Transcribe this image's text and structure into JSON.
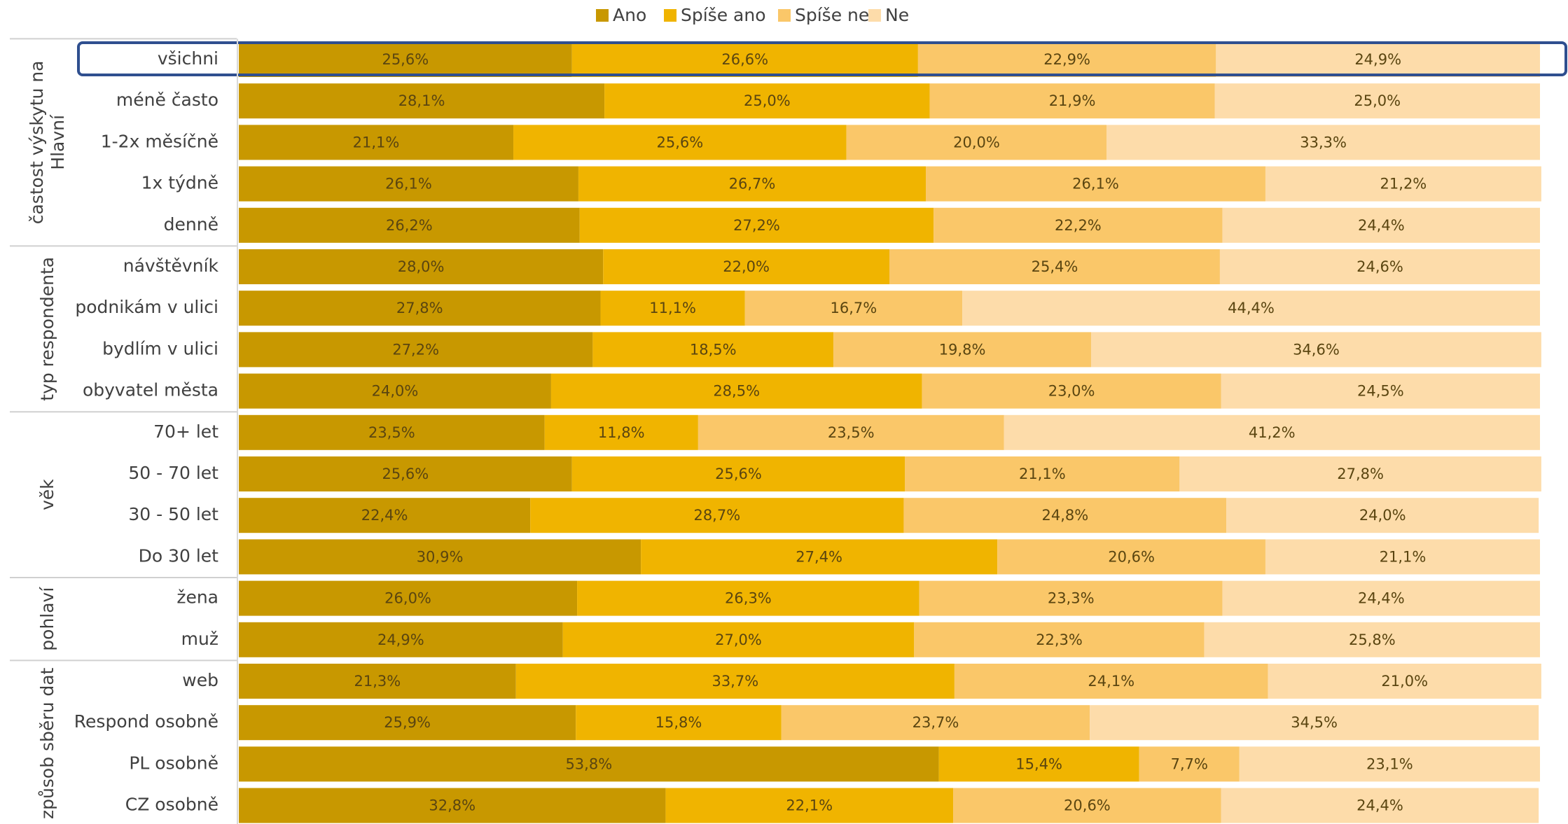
{
  "chart_data": {
    "type": "stacked-bar-horizontal",
    "xlim": [
      0,
      100
    ],
    "groups": [
      {
        "label": [
          "častost výskytu na",
          "Hlavní"
        ],
        "categories": [
          "všichni",
          "méně často",
          "1-2x měsíčně",
          "1x týdně",
          "denně"
        ]
      },
      {
        "label": [
          "typ respondenta"
        ],
        "categories": [
          "návštěvník",
          "podnikám v ulici",
          "bydlím v ulici",
          "obyvatel města"
        ]
      },
      {
        "label": [
          "věk"
        ],
        "categories": [
          "70+ let",
          "50 - 70 let",
          "30 - 50 let",
          "Do 30 let"
        ]
      },
      {
        "label": [
          "pohlaví"
        ],
        "categories": [
          "žena",
          "muž"
        ]
      },
      {
        "label": [
          "způsob sběru dat"
        ],
        "categories": [
          "web",
          "Respond osobně",
          "PL osobně",
          "CZ osobně"
        ]
      }
    ],
    "series": [
      {
        "name": "Ano",
        "color": "#c89800",
        "values": [
          25.6,
          28.1,
          21.1,
          26.1,
          26.2,
          28.0,
          27.8,
          27.2,
          24.0,
          23.5,
          25.6,
          22.4,
          30.9,
          26.0,
          24.9,
          21.3,
          25.9,
          53.8,
          32.8
        ],
        "value_labels": [
          "25,6%",
          "28,1%",
          "21,1%",
          "26,1%",
          "26,2%",
          "28,0%",
          "27,8%",
          "27,2%",
          "24,0%",
          "23,5%",
          "25,6%",
          "22,4%",
          "30,9%",
          "26,0%",
          "24,9%",
          "21,3%",
          "25,9%",
          "53,8%",
          "32,8%"
        ]
      },
      {
        "name": "Spíše ano",
        "color": "#f0b400",
        "values": [
          26.6,
          25.0,
          25.6,
          26.7,
          27.2,
          22.0,
          11.1,
          18.5,
          28.5,
          11.8,
          25.6,
          28.7,
          27.4,
          26.3,
          27.0,
          33.7,
          15.8,
          15.4,
          22.1
        ],
        "value_labels": [
          "26,6%",
          "25,0%",
          "25,6%",
          "26,7%",
          "27,2%",
          "22,0%",
          "11,1%",
          "18,5%",
          "28,5%",
          "11,8%",
          "25,6%",
          "28,7%",
          "27,4%",
          "26,3%",
          "27,0%",
          "33,7%",
          "15,8%",
          "15,4%",
          "22,1%"
        ]
      },
      {
        "name": "Spíše ne",
        "color": "#fac769",
        "values": [
          22.9,
          21.9,
          20.0,
          26.1,
          22.2,
          25.4,
          16.7,
          19.8,
          23.0,
          23.5,
          21.1,
          24.8,
          20.6,
          23.3,
          22.3,
          24.1,
          23.7,
          7.7,
          20.6
        ],
        "value_labels": [
          "22,9%",
          "21,9%",
          "20,0%",
          "26,1%",
          "22,2%",
          "25,4%",
          "16,7%",
          "19,8%",
          "23,0%",
          "23,5%",
          "21,1%",
          "24,8%",
          "20,6%",
          "23,3%",
          "22,3%",
          "24,1%",
          "23,7%",
          "7,7%",
          "20,6%"
        ]
      },
      {
        "name": "Ne",
        "color": "#fddcaa",
        "values": [
          24.9,
          25.0,
          33.3,
          21.2,
          24.4,
          24.6,
          44.4,
          34.6,
          24.5,
          41.2,
          27.8,
          24.0,
          21.1,
          24.4,
          25.8,
          21.0,
          34.5,
          23.1,
          24.4
        ],
        "value_labels": [
          "24,9%",
          "25,0%",
          "33,3%",
          "21,2%",
          "24,4%",
          "24,6%",
          "44,4%",
          "34,6%",
          "24,5%",
          "41,2%",
          "27,8%",
          "24,0%",
          "21,1%",
          "24,4%",
          "25,8%",
          "21,0%",
          "34,5%",
          "23,1%",
          "24,4%"
        ]
      }
    ]
  }
}
